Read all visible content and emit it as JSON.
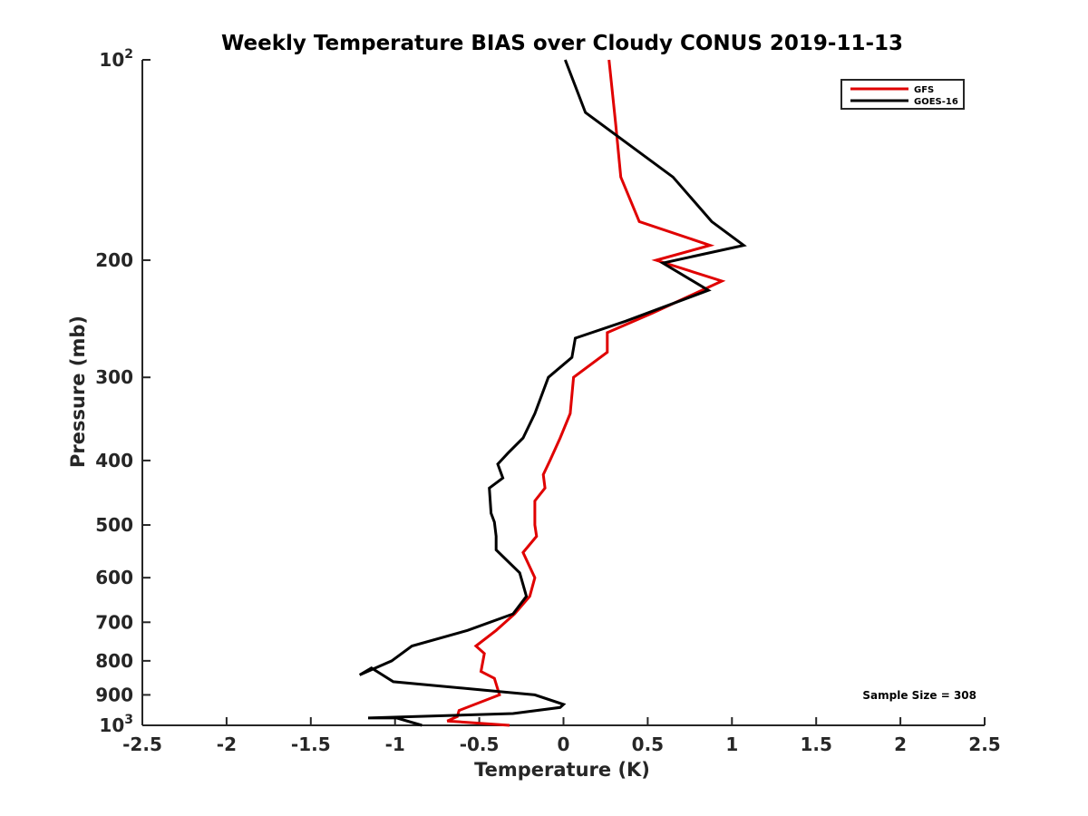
{
  "chart_data": {
    "type": "line",
    "title": "Weekly Temperature BIAS over Cloudy CONUS 2019-11-13",
    "xlabel": "Temperature (K)",
    "ylabel": "Pressure (mb)",
    "xlim": [
      -2.5,
      2.5
    ],
    "ylim": [
      100,
      1000
    ],
    "yscale": "log",
    "y_reversed": true,
    "grid": false,
    "legend_position": "top-right",
    "x_ticks": [
      -2.5,
      -2,
      -1.5,
      -1,
      -0.5,
      0,
      0.5,
      1,
      1.5,
      2,
      2.5
    ],
    "x_tick_labels": [
      "-2.5",
      "-2",
      "-1.5",
      "-1",
      "-0.5",
      "0",
      "0.5",
      "1",
      "1.5",
      "2",
      "2.5"
    ],
    "y_ticks": [
      100,
      200,
      300,
      400,
      500,
      600,
      700,
      800,
      900,
      1000
    ],
    "y_tick_labels": [
      {
        "base": "10",
        "exp": "2"
      },
      {
        "base": "200",
        "exp": ""
      },
      {
        "base": "300",
        "exp": ""
      },
      {
        "base": "400",
        "exp": ""
      },
      {
        "base": "500",
        "exp": ""
      },
      {
        "base": "600",
        "exp": ""
      },
      {
        "base": "700",
        "exp": ""
      },
      {
        "base": "800",
        "exp": ""
      },
      {
        "base": "900",
        "exp": ""
      },
      {
        "base": "10",
        "exp": "3"
      }
    ],
    "annotation": "Sample Size = 308",
    "series": [
      {
        "name": "GFS",
        "color": "#e00000",
        "points": [
          [
            0.27,
            100
          ],
          [
            0.31,
            125
          ],
          [
            0.34,
            150
          ],
          [
            0.45,
            175
          ],
          [
            0.87,
            190
          ],
          [
            0.55,
            200
          ],
          [
            0.94,
            215
          ],
          [
            0.53,
            240
          ],
          [
            0.26,
            257
          ],
          [
            0.26,
            275
          ],
          [
            0.06,
            300
          ],
          [
            0.04,
            340
          ],
          [
            -0.02,
            370
          ],
          [
            -0.08,
            400
          ],
          [
            -0.12,
            420
          ],
          [
            -0.11,
            440
          ],
          [
            -0.17,
            460
          ],
          [
            -0.17,
            500
          ],
          [
            -0.16,
            520
          ],
          [
            -0.24,
            550
          ],
          [
            -0.17,
            600
          ],
          [
            -0.2,
            640
          ],
          [
            -0.29,
            680
          ],
          [
            -0.4,
            720
          ],
          [
            -0.52,
            760
          ],
          [
            -0.47,
            780
          ],
          [
            -0.49,
            830
          ],
          [
            -0.41,
            850
          ],
          [
            -0.38,
            900
          ],
          [
            -0.62,
            950
          ],
          [
            -0.63,
            970
          ],
          [
            -0.69,
            985
          ],
          [
            -0.32,
            1000
          ]
        ]
      },
      {
        "name": "GOES-16",
        "color": "#000000",
        "points": [
          [
            0.01,
            100
          ],
          [
            0.13,
            120
          ],
          [
            0.65,
            150
          ],
          [
            0.88,
            175
          ],
          [
            1.07,
            190
          ],
          [
            0.59,
            202
          ],
          [
            0.86,
            222
          ],
          [
            0.37,
            247
          ],
          [
            0.07,
            262
          ],
          [
            0.05,
            280
          ],
          [
            -0.09,
            300
          ],
          [
            -0.17,
            340
          ],
          [
            -0.24,
            370
          ],
          [
            -0.33,
            390
          ],
          [
            -0.39,
            405
          ],
          [
            -0.36,
            425
          ],
          [
            -0.44,
            440
          ],
          [
            -0.43,
            480
          ],
          [
            -0.41,
            495
          ],
          [
            -0.4,
            520
          ],
          [
            -0.4,
            545
          ],
          [
            -0.26,
            590
          ],
          [
            -0.22,
            640
          ],
          [
            -0.3,
            680
          ],
          [
            -0.57,
            720
          ],
          [
            -0.9,
            760
          ],
          [
            -1.02,
            800
          ],
          [
            -1.21,
            840
          ],
          [
            -1.14,
            820
          ],
          [
            -1.01,
            860
          ],
          [
            -0.17,
            900
          ],
          [
            0.0,
            930
          ],
          [
            -0.02,
            940
          ],
          [
            -0.3,
            960
          ],
          [
            -1.16,
            975
          ],
          [
            -0.99,
            975
          ],
          [
            -0.84,
            1000
          ]
        ]
      }
    ]
  }
}
